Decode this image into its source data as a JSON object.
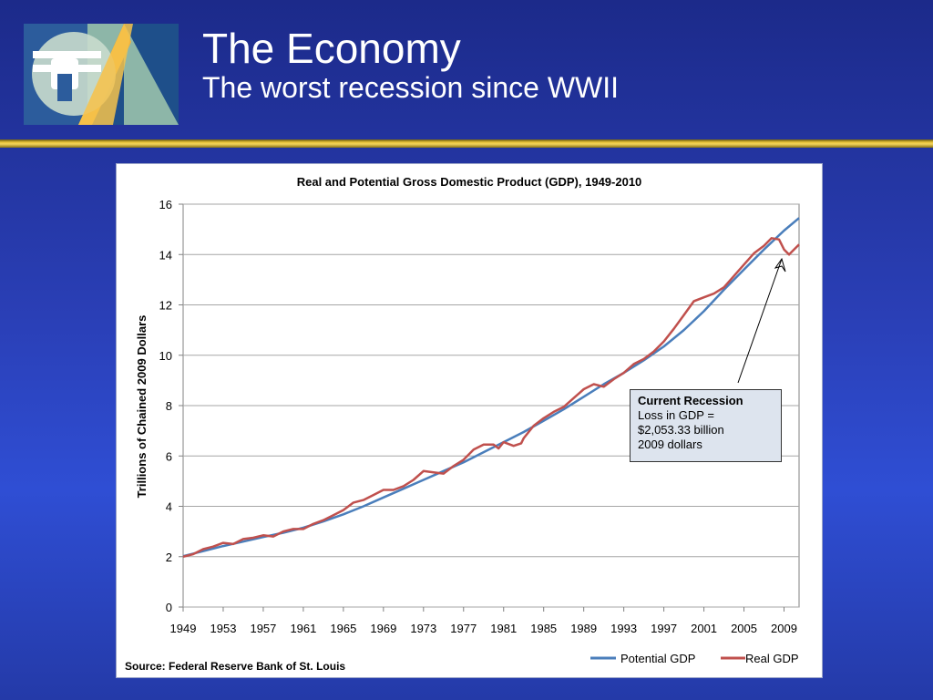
{
  "slide": {
    "title": "The Economy",
    "subtitle": "The worst recession since WWII",
    "background_color": "#2a3fb6",
    "divider_color": "#e8c23a"
  },
  "logo": {
    "icon": "dining-fork-logo-icon"
  },
  "chart_data": {
    "type": "line",
    "title": "Real and Potential Gross Domestic Product (GDP), 1949-2010",
    "ylabel": "Trillions of Chained 2009 Dollars",
    "xlabel": "",
    "ylim": [
      0,
      16
    ],
    "yticks": [
      0,
      2,
      4,
      6,
      8,
      10,
      12,
      14,
      16
    ],
    "xlim": [
      1949,
      2010.5
    ],
    "xticks": [
      "1949",
      "1953",
      "1957",
      "1961",
      "1965",
      "1969",
      "1973",
      "1977",
      "1981",
      "1985",
      "1989",
      "1993",
      "1997",
      "2001",
      "2005",
      "2009"
    ],
    "grid": true,
    "legend": "bottom-right",
    "series": [
      {
        "name": "Potential GDP",
        "color": "#4a7ebb",
        "x": [
          1949,
          1951,
          1953,
          1955,
          1957,
          1959,
          1961,
          1963,
          1965,
          1967,
          1969,
          1971,
          1973,
          1975,
          1977,
          1979,
          1981,
          1983,
          1985,
          1987,
          1989,
          1991,
          1993,
          1995,
          1997,
          1999,
          2001,
          2003,
          2005,
          2007,
          2009,
          2010.5
        ],
        "y": [
          2.02,
          2.22,
          2.42,
          2.6,
          2.78,
          2.95,
          3.15,
          3.4,
          3.68,
          4.0,
          4.35,
          4.7,
          5.05,
          5.4,
          5.75,
          6.15,
          6.55,
          6.95,
          7.4,
          7.85,
          8.35,
          8.85,
          9.3,
          9.8,
          10.35,
          11.0,
          11.75,
          12.6,
          13.4,
          14.2,
          14.95,
          15.45
        ]
      },
      {
        "name": "Real GDP",
        "color": "#c0504d",
        "x": [
          1949,
          1950,
          1951,
          1952,
          1953,
          1954,
          1955,
          1956,
          1957,
          1958,
          1959,
          1960,
          1961,
          1962,
          1963,
          1964,
          1965,
          1966,
          1967,
          1968,
          1969,
          1970,
          1971,
          1972,
          1973,
          1974,
          1975,
          1976,
          1977,
          1978,
          1979,
          1980,
          1980.5,
          1981,
          1982,
          1982.75,
          1983,
          1984,
          1985,
          1986,
          1987,
          1988,
          1989,
          1990,
          1991,
          1992,
          1993,
          1994,
          1995,
          1996,
          1997,
          1998,
          1999,
          2000,
          2001,
          2002,
          2003,
          2004,
          2005,
          2006,
          2007,
          2007.75,
          2008.5,
          2009,
          2009.5,
          2010.5
        ],
        "y": [
          2.0,
          2.1,
          2.3,
          2.4,
          2.55,
          2.5,
          2.7,
          2.75,
          2.85,
          2.8,
          3.0,
          3.1,
          3.1,
          3.3,
          3.45,
          3.65,
          3.85,
          4.15,
          4.25,
          4.45,
          4.65,
          4.65,
          4.8,
          5.05,
          5.4,
          5.35,
          5.3,
          5.6,
          5.85,
          6.25,
          6.45,
          6.45,
          6.3,
          6.55,
          6.4,
          6.5,
          6.7,
          7.2,
          7.5,
          7.75,
          7.95,
          8.3,
          8.65,
          8.85,
          8.75,
          9.05,
          9.3,
          9.65,
          9.85,
          10.15,
          10.55,
          11.05,
          11.6,
          12.15,
          12.3,
          12.45,
          12.7,
          13.15,
          13.6,
          14.05,
          14.35,
          14.65,
          14.6,
          14.2,
          14.0,
          14.4
        ]
      }
    ],
    "annotation": {
      "title": "Current Recession",
      "line1": "Loss in GDP =",
      "line2": "$2,053.33 billion",
      "line3": "2009 dollars",
      "points_to": {
        "x": 2009,
        "y": 13.9
      }
    },
    "source": "Source: Federal Reserve Bank of St. Louis"
  }
}
